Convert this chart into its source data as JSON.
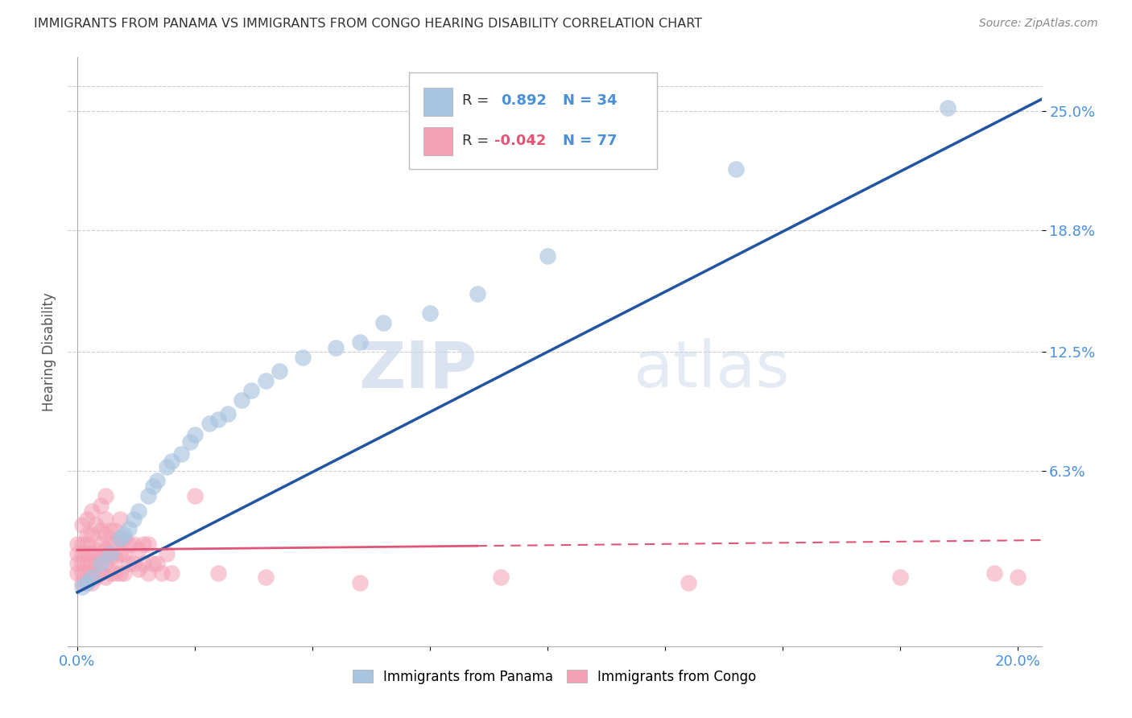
{
  "title": "IMMIGRANTS FROM PANAMA VS IMMIGRANTS FROM CONGO HEARING DISABILITY CORRELATION CHART",
  "source": "Source: ZipAtlas.com",
  "ylabel": "Hearing Disability",
  "ytick_labels": [
    "6.3%",
    "12.5%",
    "18.8%",
    "25.0%"
  ],
  "ytick_values": [
    0.063,
    0.125,
    0.188,
    0.25
  ],
  "xlim": [
    -0.002,
    0.205
  ],
  "ylim": [
    -0.028,
    0.278
  ],
  "panama_R": 0.892,
  "panama_N": 34,
  "congo_R": -0.042,
  "congo_N": 77,
  "panama_color": "#a8c4e0",
  "panama_line_color": "#2255a0",
  "congo_color": "#f4a0b5",
  "congo_line_color": "#e05575",
  "watermark_zip": "ZIP",
  "watermark_atlas": "atlas",
  "background_color": "#ffffff",
  "grid_color": "#cccccc",
  "panama_x": [
    0.001,
    0.002,
    0.003,
    0.005,
    0.007,
    0.009,
    0.01,
    0.011,
    0.012,
    0.013,
    0.015,
    0.016,
    0.017,
    0.019,
    0.02,
    0.022,
    0.024,
    0.025,
    0.028,
    0.03,
    0.032,
    0.035,
    0.037,
    0.04,
    0.043,
    0.048,
    0.055,
    0.06,
    0.065,
    0.075,
    0.085,
    0.1,
    0.14,
    0.185
  ],
  "panama_y": [
    0.003,
    0.005,
    0.008,
    0.015,
    0.02,
    0.028,
    0.03,
    0.033,
    0.038,
    0.042,
    0.05,
    0.055,
    0.058,
    0.065,
    0.068,
    0.072,
    0.078,
    0.082,
    0.088,
    0.09,
    0.093,
    0.1,
    0.105,
    0.11,
    0.115,
    0.122,
    0.127,
    0.13,
    0.14,
    0.145,
    0.155,
    0.175,
    0.22,
    0.252
  ],
  "congo_x": [
    0.0,
    0.0,
    0.0,
    0.0,
    0.001,
    0.001,
    0.001,
    0.001,
    0.001,
    0.001,
    0.002,
    0.002,
    0.002,
    0.002,
    0.002,
    0.002,
    0.002,
    0.003,
    0.003,
    0.003,
    0.003,
    0.003,
    0.003,
    0.004,
    0.004,
    0.004,
    0.004,
    0.005,
    0.005,
    0.005,
    0.005,
    0.005,
    0.006,
    0.006,
    0.006,
    0.006,
    0.006,
    0.006,
    0.007,
    0.007,
    0.007,
    0.007,
    0.008,
    0.008,
    0.008,
    0.008,
    0.009,
    0.009,
    0.009,
    0.009,
    0.01,
    0.01,
    0.01,
    0.011,
    0.011,
    0.012,
    0.012,
    0.013,
    0.013,
    0.014,
    0.014,
    0.015,
    0.015,
    0.016,
    0.017,
    0.018,
    0.019,
    0.02,
    0.025,
    0.03,
    0.04,
    0.06,
    0.09,
    0.13,
    0.175,
    0.195,
    0.2
  ],
  "congo_y": [
    0.01,
    0.015,
    0.02,
    0.025,
    0.005,
    0.01,
    0.015,
    0.02,
    0.025,
    0.035,
    0.005,
    0.01,
    0.015,
    0.02,
    0.025,
    0.03,
    0.038,
    0.005,
    0.01,
    0.015,
    0.02,
    0.03,
    0.042,
    0.008,
    0.015,
    0.022,
    0.035,
    0.01,
    0.018,
    0.025,
    0.032,
    0.045,
    0.008,
    0.015,
    0.022,
    0.03,
    0.038,
    0.05,
    0.01,
    0.018,
    0.025,
    0.032,
    0.01,
    0.018,
    0.025,
    0.032,
    0.01,
    0.02,
    0.028,
    0.038,
    0.01,
    0.02,
    0.028,
    0.015,
    0.025,
    0.015,
    0.025,
    0.012,
    0.022,
    0.015,
    0.025,
    0.01,
    0.025,
    0.015,
    0.015,
    0.01,
    0.02,
    0.01,
    0.05,
    0.01,
    0.008,
    0.005,
    0.008,
    0.005,
    0.008,
    0.01,
    0.008
  ]
}
